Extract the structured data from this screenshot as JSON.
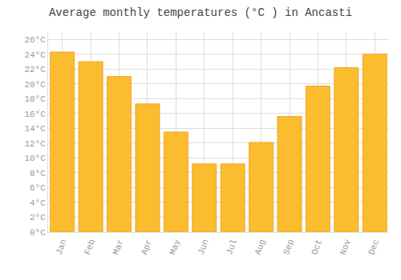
{
  "chart_data": {
    "type": "bar",
    "title": "Average monthly temperatures (°C ) in Ancasti",
    "categories": [
      "Jan",
      "Feb",
      "Mar",
      "Apr",
      "May",
      "Jun",
      "Jul",
      "Aug",
      "Sep",
      "Oct",
      "Nov",
      "Dec"
    ],
    "values": [
      24.3,
      23.0,
      21.0,
      17.3,
      13.5,
      9.2,
      9.2,
      12.1,
      15.6,
      19.7,
      22.2,
      24.0
    ],
    "color": "#FBBC2E",
    "ylim": [
      0,
      27
    ],
    "yticks": [
      {
        "value": 0,
        "label": "0°C"
      },
      {
        "value": 2,
        "label": "2°C"
      },
      {
        "value": 4,
        "label": "4°C"
      },
      {
        "value": 6,
        "label": "6°C"
      },
      {
        "value": 8,
        "label": "8°C"
      },
      {
        "value": 10,
        "label": "10°C"
      },
      {
        "value": 12,
        "label": "12°C"
      },
      {
        "value": 14,
        "label": "14°C"
      },
      {
        "value": 16,
        "label": "16°C"
      },
      {
        "value": 18,
        "label": "18°C"
      },
      {
        "value": 20,
        "label": "20°C"
      },
      {
        "value": 22,
        "label": "22°C"
      },
      {
        "value": 24,
        "label": "24°C"
      },
      {
        "value": 26,
        "label": "26°C"
      }
    ],
    "grid": true
  }
}
